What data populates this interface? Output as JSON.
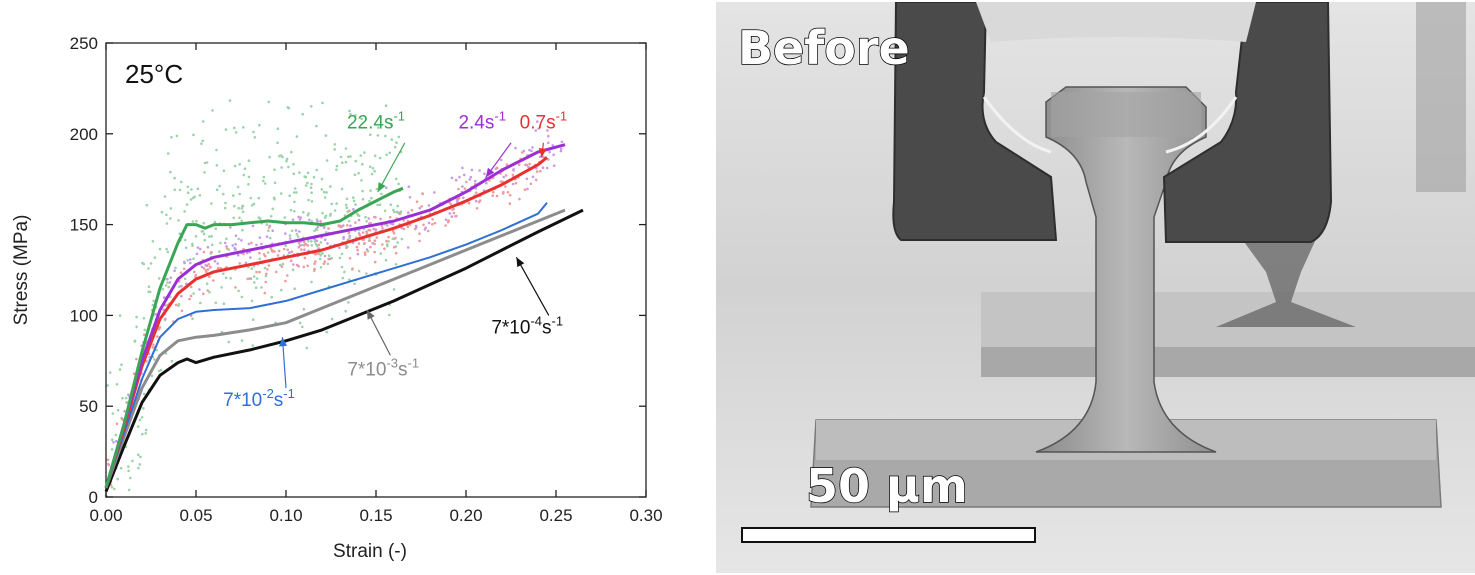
{
  "chart_data": {
    "type": "line",
    "title": "",
    "condition_label": "25°C",
    "xlabel": "Strain (-)",
    "ylabel": "Stress (MPa)",
    "xlim": [
      0,
      0.3
    ],
    "ylim": [
      0,
      250
    ],
    "x_ticks": [
      "0.00",
      "0.05",
      "0.10",
      "0.15",
      "0.20",
      "0.25",
      "0.30"
    ],
    "y_ticks": [
      "0",
      "50",
      "100",
      "150",
      "200",
      "250"
    ],
    "grid": false,
    "series": [
      {
        "name": "22.4s-1",
        "base": "22.4s",
        "exp": "-1",
        "color": "#3aa655",
        "x": [
          0,
          0.01,
          0.02,
          0.03,
          0.04,
          0.045,
          0.05,
          0.055,
          0.06,
          0.07,
          0.08,
          0.09,
          0.1,
          0.11,
          0.12,
          0.13,
          0.14,
          0.15,
          0.16,
          0.165
        ],
        "y": [
          5,
          40,
          80,
          115,
          140,
          150,
          150,
          148,
          150,
          150,
          151,
          152,
          151,
          151,
          150,
          152,
          158,
          163,
          168,
          170
        ]
      },
      {
        "name": "2.4s-1",
        "base": "2.4s",
        "exp": "-1",
        "color": "#9b2fd6",
        "x": [
          0,
          0.01,
          0.02,
          0.03,
          0.04,
          0.05,
          0.06,
          0.08,
          0.1,
          0.12,
          0.14,
          0.16,
          0.18,
          0.2,
          0.22,
          0.24,
          0.255
        ],
        "y": [
          5,
          40,
          75,
          103,
          120,
          128,
          132,
          136,
          140,
          144,
          148,
          152,
          158,
          168,
          180,
          190,
          194
        ]
      },
      {
        "name": "0.7s-1",
        "base": "0.7s",
        "exp": "-1",
        "color": "#e8312f",
        "x": [
          0,
          0.01,
          0.02,
          0.03,
          0.04,
          0.05,
          0.06,
          0.08,
          0.1,
          0.12,
          0.14,
          0.16,
          0.18,
          0.2,
          0.22,
          0.24,
          0.245
        ],
        "y": [
          5,
          38,
          72,
          98,
          112,
          120,
          124,
          128,
          132,
          136,
          142,
          148,
          155,
          163,
          172,
          183,
          187
        ]
      },
      {
        "name": "7*10-2s-1",
        "base": "7*10",
        "exp": "-2",
        "post": "s",
        "exp2": "-1",
        "color": "#2f6fd6",
        "x": [
          0,
          0.01,
          0.02,
          0.03,
          0.04,
          0.05,
          0.06,
          0.08,
          0.1,
          0.12,
          0.14,
          0.16,
          0.18,
          0.2,
          0.22,
          0.24,
          0.245
        ],
        "y": [
          5,
          35,
          65,
          88,
          98,
          102,
          103,
          104,
          108,
          114,
          120,
          126,
          132,
          139,
          147,
          156,
          162
        ]
      },
      {
        "name": "7*10-3s-1",
        "base": "7*10",
        "exp": "-3",
        "post": "s",
        "exp2": "-1",
        "color": "#8c8c8c",
        "x": [
          0,
          0.01,
          0.02,
          0.03,
          0.04,
          0.05,
          0.06,
          0.08,
          0.1,
          0.12,
          0.14,
          0.16,
          0.18,
          0.2,
          0.22,
          0.24,
          0.255
        ],
        "y": [
          5,
          33,
          60,
          78,
          86,
          88,
          89,
          92,
          96,
          104,
          112,
          120,
          128,
          136,
          144,
          152,
          158
        ]
      },
      {
        "name": "7*10-4s-1",
        "base": "7*10",
        "exp": "-4",
        "post": "s",
        "exp2": "-1",
        "color": "#111111",
        "x": [
          0,
          0.01,
          0.02,
          0.03,
          0.04,
          0.045,
          0.05,
          0.06,
          0.08,
          0.1,
          0.12,
          0.14,
          0.16,
          0.18,
          0.2,
          0.22,
          0.24,
          0.265
        ],
        "y": [
          3,
          28,
          52,
          67,
          74,
          76,
          74,
          77,
          81,
          86,
          92,
          100,
          108,
          117,
          126,
          136,
          146,
          158
        ]
      }
    ]
  },
  "image_panel": {
    "label": "Before",
    "scale_bar_label": "50 µm"
  }
}
